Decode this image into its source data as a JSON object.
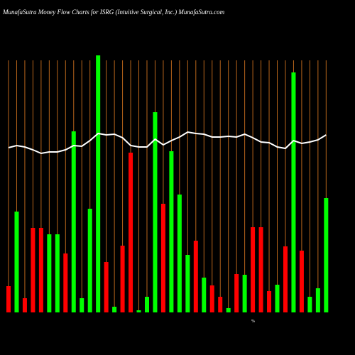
{
  "chart_data": {
    "type": "bar",
    "title": "MunafaSutra  Money Flow  Charts for ISRG                (Intuitive  Surgical,  Inc.) MunafaSutra.com",
    "annotation": "%",
    "categories": [
      null,
      null,
      null,
      null,
      null,
      null,
      null,
      null,
      null,
      null,
      null,
      null,
      null,
      null,
      null,
      null,
      null,
      null,
      null,
      null,
      null,
      null,
      null,
      null,
      null,
      null,
      null,
      null,
      null,
      null,
      null,
      null,
      null,
      null,
      null,
      null,
      null,
      null,
      null,
      null
    ],
    "values": [
      37,
      142,
      20,
      119,
      119,
      110,
      110,
      83,
      255,
      20,
      146,
      362,
      71,
      8,
      94,
      225,
      3,
      22,
      282,
      153,
      227,
      166,
      81,
      101,
      49,
      38,
      22,
      6,
      54,
      53,
      120,
      120,
      30,
      39,
      93,
      338,
      87,
      22,
      34,
      161
    ],
    "colors": [
      "#ff0000",
      "#00ff00",
      "#ff0000",
      "#ff0000",
      "#ff0000",
      "#00ff00",
      "#00ff00",
      "#ff0000",
      "#00ff00",
      "#00ff00",
      "#00ff00",
      "#00ff00",
      "#ff0000",
      "#00ff00",
      "#ff0000",
      "#ff0000",
      "#00ff00",
      "#00ff00",
      "#00ff00",
      "#ff0000",
      "#00ff00",
      "#00ff00",
      "#00ff00",
      "#ff0000",
      "#00ff00",
      "#ff0000",
      "#ff0000",
      "#00ff00",
      "#ff0000",
      "#00ff00",
      "#ff0000",
      "#ff0000",
      "#ff0000",
      "#00ff00",
      "#ff0000",
      "#00ff00",
      "#ff0000",
      "#00ff00",
      "#00ff00",
      "#00ff00"
    ],
    "line": {
      "color": "#ffffff",
      "values": [
        232,
        235,
        233,
        229,
        224,
        226,
        226,
        229,
        235,
        234,
        242,
        252,
        250,
        251,
        246,
        235,
        233,
        233,
        244,
        236,
        242,
        247,
        254,
        252,
        251,
        247,
        247,
        248,
        247,
        251,
        246,
        240,
        239,
        233,
        231,
        242,
        238,
        240,
        243,
        250
      ]
    },
    "grid_color": "#b8651b",
    "ylim": [
      0,
      370
    ]
  }
}
